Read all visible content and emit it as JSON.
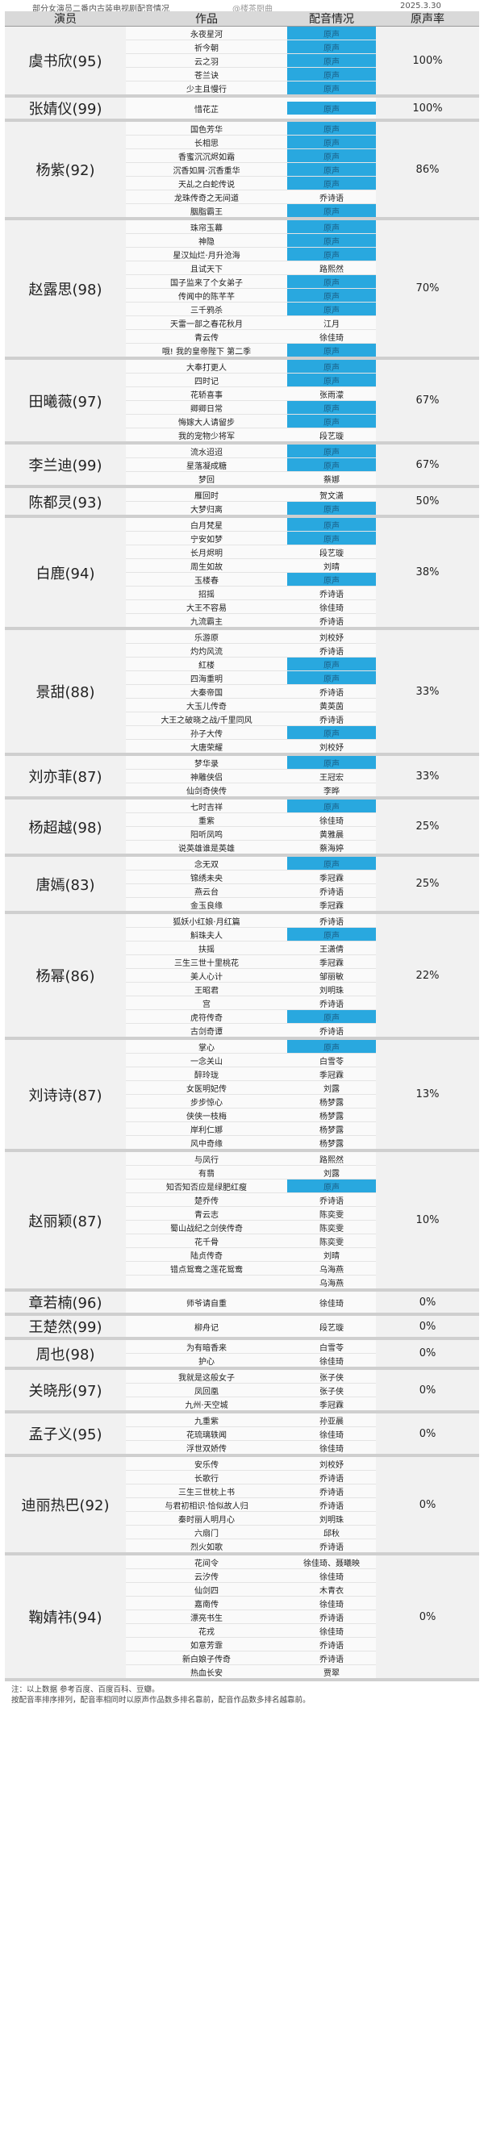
{
  "top": {
    "title": "部分女演员二番内古装电视剧配音情况",
    "watermark": "@楼茶厨曲",
    "date": "2025.3.30"
  },
  "header": {
    "actor": "演员",
    "works": "作品",
    "dubbing": "配音情况",
    "rate": "原声率"
  },
  "original_voice_label": "原声",
  "groups": [
    {
      "actor": "虞书欣(95)",
      "rate": "100%",
      "works": [
        {
          "title": "永夜星河",
          "dub": ""
        },
        {
          "title": "祈今朝",
          "dub": ""
        },
        {
          "title": "云之羽",
          "dub": ""
        },
        {
          "title": "苍兰诀",
          "dub": ""
        },
        {
          "title": "少主且慢行",
          "dub": ""
        }
      ]
    },
    {
      "actor": "张婧仪(99)",
      "rate": "100%",
      "works": [
        {
          "title": "惜花芷",
          "dub": ""
        }
      ]
    },
    {
      "actor": "杨紫(92)",
      "rate": "86%",
      "works": [
        {
          "title": "国色芳华",
          "dub": ""
        },
        {
          "title": "长相思",
          "dub": ""
        },
        {
          "title": "香蜜沉沉烬如霜",
          "dub": ""
        },
        {
          "title": "沉香如屑·沉香重华",
          "dub": ""
        },
        {
          "title": "天乩之白蛇传说",
          "dub": ""
        },
        {
          "title": "龙珠传奇之无间道",
          "dub": "乔诗语"
        },
        {
          "title": "胭脂霸王",
          "dub": ""
        }
      ]
    },
    {
      "actor": "赵露思(98)",
      "rate": "70%",
      "works": [
        {
          "title": "珠帘玉幕",
          "dub": ""
        },
        {
          "title": "神隐",
          "dub": ""
        },
        {
          "title": "星汉灿烂·月升沧海",
          "dub": ""
        },
        {
          "title": "且试天下",
          "dub": "路熙然"
        },
        {
          "title": "国子监来了个女弟子",
          "dub": ""
        },
        {
          "title": "传闻中的陈芊芊",
          "dub": ""
        },
        {
          "title": "三千鸦杀",
          "dub": ""
        },
        {
          "title": "天雷一部之春花秋月",
          "dub": "江月"
        },
        {
          "title": "青云传",
          "dub": "徐佳琦"
        },
        {
          "title": "哦! 我的皇帝陛下 第二季",
          "dub": ""
        }
      ]
    },
    {
      "actor": "田曦薇(97)",
      "rate": "67%",
      "works": [
        {
          "title": "大奉打更人",
          "dub": ""
        },
        {
          "title": "四时记",
          "dub": ""
        },
        {
          "title": "花轿喜事",
          "dub": "张雨濛"
        },
        {
          "title": "卿卿日常",
          "dub": ""
        },
        {
          "title": "悔嫁大人请留步",
          "dub": ""
        },
        {
          "title": "我的宠物少将军",
          "dub": "段艺璇"
        }
      ]
    },
    {
      "actor": "李兰迪(99)",
      "rate": "67%",
      "works": [
        {
          "title": "流水迢迢",
          "dub": ""
        },
        {
          "title": "星落凝成糖",
          "dub": ""
        },
        {
          "title": "梦回",
          "dub": "蔡娜"
        }
      ]
    },
    {
      "actor": "陈都灵(93)",
      "rate": "50%",
      "works": [
        {
          "title": "雁回时",
          "dub": "贺文潇"
        },
        {
          "title": "大梦归离",
          "dub": ""
        }
      ]
    },
    {
      "actor": "白鹿(94)",
      "rate": "38%",
      "works": [
        {
          "title": "白月梵星",
          "dub": ""
        },
        {
          "title": "宁安如梦",
          "dub": ""
        },
        {
          "title": "长月烬明",
          "dub": "段艺璇"
        },
        {
          "title": "周生如故",
          "dub": "刘晴"
        },
        {
          "title": "玉楼春",
          "dub": ""
        },
        {
          "title": "招摇",
          "dub": "乔诗语"
        },
        {
          "title": "大王不容易",
          "dub": "徐佳琦"
        },
        {
          "title": "九流霸主",
          "dub": "乔诗语"
        }
      ]
    },
    {
      "actor": "景甜(88)",
      "rate": "33%",
      "works": [
        {
          "title": "乐游原",
          "dub": "刘校妤"
        },
        {
          "title": "灼灼风流",
          "dub": "乔诗语"
        },
        {
          "title": "紅楼",
          "dub": ""
        },
        {
          "title": "四海重明",
          "dub": ""
        },
        {
          "title": "大秦帝国",
          "dub": "乔诗语"
        },
        {
          "title": "大玉儿传奇",
          "dub": "黄英茵"
        },
        {
          "title": "大王之破晓之战/千里同风",
          "dub": "乔诗语"
        },
        {
          "title": "孙子大传",
          "dub": ""
        },
        {
          "title": "大唐荣耀",
          "dub": "刘校妤"
        }
      ]
    },
    {
      "actor": "刘亦菲(87)",
      "rate": "33%",
      "works": [
        {
          "title": "梦华录",
          "dub": ""
        },
        {
          "title": "神雕侠侣",
          "dub": "王冠宏"
        },
        {
          "title": "仙剑奇侠传",
          "dub": "李晔"
        }
      ]
    },
    {
      "actor": "杨超越(98)",
      "rate": "25%",
      "works": [
        {
          "title": "七时吉祥",
          "dub": ""
        },
        {
          "title": "重紫",
          "dub": "徐佳琦"
        },
        {
          "title": "阳听凤鸣",
          "dub": "黄雅晨"
        },
        {
          "title": "说英雄谁是英雄",
          "dub": "蔡海婷"
        }
      ]
    },
    {
      "actor": "唐嫣(83)",
      "rate": "25%",
      "works": [
        {
          "title": "念无双",
          "dub": ""
        },
        {
          "title": "锦绣未央",
          "dub": "季冠霖"
        },
        {
          "title": "燕云台",
          "dub": "乔诗语"
        },
        {
          "title": "金玉良缘",
          "dub": "季冠霖"
        }
      ]
    },
    {
      "actor": "杨幂(86)",
      "rate": "22%",
      "works": [
        {
          "title": "狐妖小红娘·月红篇",
          "dub": "乔诗语"
        },
        {
          "title": "斛珠夫人",
          "dub": ""
        },
        {
          "title": "扶摇",
          "dub": "王潇倩"
        },
        {
          "title": "三生三世十里桃花",
          "dub": "季冠霖"
        },
        {
          "title": "美人心计",
          "dub": "邹丽敏"
        },
        {
          "title": "王昭君",
          "dub": "刘明珠"
        },
        {
          "title": "宫",
          "dub": "乔诗语"
        },
        {
          "title": "虎符传奇",
          "dub": ""
        },
        {
          "title": "古剑奇谭",
          "dub": "乔诗语"
        }
      ]
    },
    {
      "actor": "刘诗诗(87)",
      "rate": "13%",
      "works": [
        {
          "title": "掌心",
          "dub": ""
        },
        {
          "title": "一念关山",
          "dub": "白雪苓"
        },
        {
          "title": "醉玲珑",
          "dub": "季冠霖"
        },
        {
          "title": "女医明妃传",
          "dub": "刘露"
        },
        {
          "title": "步步惊心",
          "dub": "杨梦露"
        },
        {
          "title": "侠侠一枝梅",
          "dub": "杨梦露"
        },
        {
          "title": "岸利仁娜",
          "dub": "杨梦露"
        },
        {
          "title": "风中奇缘",
          "dub": "杨梦露"
        }
      ]
    },
    {
      "actor": "赵丽颖(87)",
      "rate": "10%",
      "works": [
        {
          "title": "与凤行",
          "dub": "路熙然"
        },
        {
          "title": "有翡",
          "dub": "刘露"
        },
        {
          "title": "知否知否应是绿肥红瘦",
          "dub": ""
        },
        {
          "title": "楚乔传",
          "dub": "乔诗语"
        },
        {
          "title": "青云志",
          "dub": "陈奕雯"
        },
        {
          "title": "蜀山战纪之剑侠传奇",
          "dub": "陈奕雯"
        },
        {
          "title": "花千骨",
          "dub": "陈奕雯"
        },
        {
          "title": "陆贞传奇",
          "dub": "刘晴"
        },
        {
          "title": "错点鸳鸯之莲花鸳鸯",
          "dub": "乌海燕"
        },
        {
          "title": "",
          "dub": "乌海燕"
        }
      ]
    },
    {
      "actor": "章若楠(96)",
      "rate": "0%",
      "works": [
        {
          "title": "师爷请自重",
          "dub": "徐佳琦"
        }
      ]
    },
    {
      "actor": "王楚然(99)",
      "rate": "0%",
      "works": [
        {
          "title": "柳舟记",
          "dub": "段艺璇"
        }
      ]
    },
    {
      "actor": "周也(98)",
      "rate": "0%",
      "works": [
        {
          "title": "为有暗香来",
          "dub": "白雪苓"
        },
        {
          "title": "护心",
          "dub": "徐佳琦"
        }
      ]
    },
    {
      "actor": "关晓彤(97)",
      "rate": "0%",
      "works": [
        {
          "title": "我就是这般女子",
          "dub": "张子侠"
        },
        {
          "title": "凤回凰",
          "dub": "张子侠"
        },
        {
          "title": "九州·天空城",
          "dub": "季冠霖"
        }
      ]
    },
    {
      "actor": "孟子义(95)",
      "rate": "0%",
      "works": [
        {
          "title": "九重紫",
          "dub": "孙亚晨"
        },
        {
          "title": "花琉璃轶闻",
          "dub": "徐佳琦"
        },
        {
          "title": "浮世双娇传",
          "dub": "徐佳琦"
        }
      ]
    },
    {
      "actor": "迪丽热巴(92)",
      "rate": "0%",
      "works": [
        {
          "title": "安乐传",
          "dub": "刘校妤"
        },
        {
          "title": "长歌行",
          "dub": "乔诗语"
        },
        {
          "title": "三生三世枕上书",
          "dub": "乔诗语"
        },
        {
          "title": "与君初相识·恰似故人归",
          "dub": "乔诗语"
        },
        {
          "title": "秦时丽人明月心",
          "dub": "刘明珠"
        },
        {
          "title": "六扇门",
          "dub": "邱秋"
        },
        {
          "title": "烈火如歌",
          "dub": "乔诗语"
        }
      ]
    },
    {
      "actor": "鞠婧祎(94)",
      "rate": "0%",
      "works": [
        {
          "title": "花间令",
          "dub": "徐佳琦、聂曦映"
        },
        {
          "title": "云汐传",
          "dub": "徐佳琦"
        },
        {
          "title": "仙剑四",
          "dub": "木青衣"
        },
        {
          "title": "嘉南传",
          "dub": "徐佳琦"
        },
        {
          "title": "漂亮书生",
          "dub": "乔诗语"
        },
        {
          "title": "花戎",
          "dub": "徐佳琦"
        },
        {
          "title": "如意芳霏",
          "dub": "乔诗语"
        },
        {
          "title": "新白娘子传奇",
          "dub": "乔诗语"
        },
        {
          "title": "热血长安",
          "dub": "贾翠"
        }
      ]
    }
  ],
  "notes": [
    "注：以上数据 参考百度、百度百科、豆瓣。",
    "按配音率排序排列，配音率相同时以原声作品数多排名靠前，配音作品数多排名越靠前。"
  ]
}
